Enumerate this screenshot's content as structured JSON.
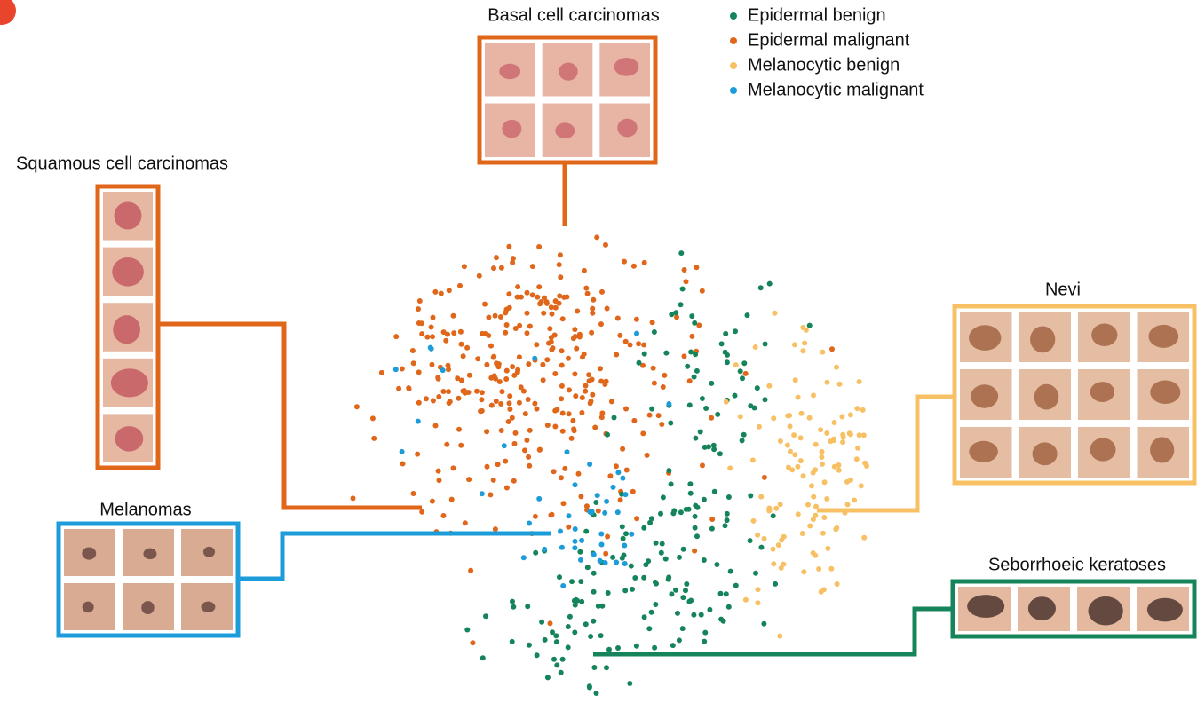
{
  "legend": [
    {
      "label": "Epidermal benign",
      "color": "#16845a"
    },
    {
      "label": "Epidermal malignant",
      "color": "#e0661a"
    },
    {
      "label": "Melanocytic benign",
      "color": "#f7c064"
    },
    {
      "label": "Melanocytic malignant",
      "color": "#1c9cd8"
    }
  ],
  "groups": [
    {
      "title": "Basal cell carcinomas"
    },
    {
      "title": "Squamous cell carcinomas"
    },
    {
      "title": "Melanomas"
    },
    {
      "title": "Nevi"
    },
    {
      "title": "Seborrhoeic keratoses"
    }
  ]
}
